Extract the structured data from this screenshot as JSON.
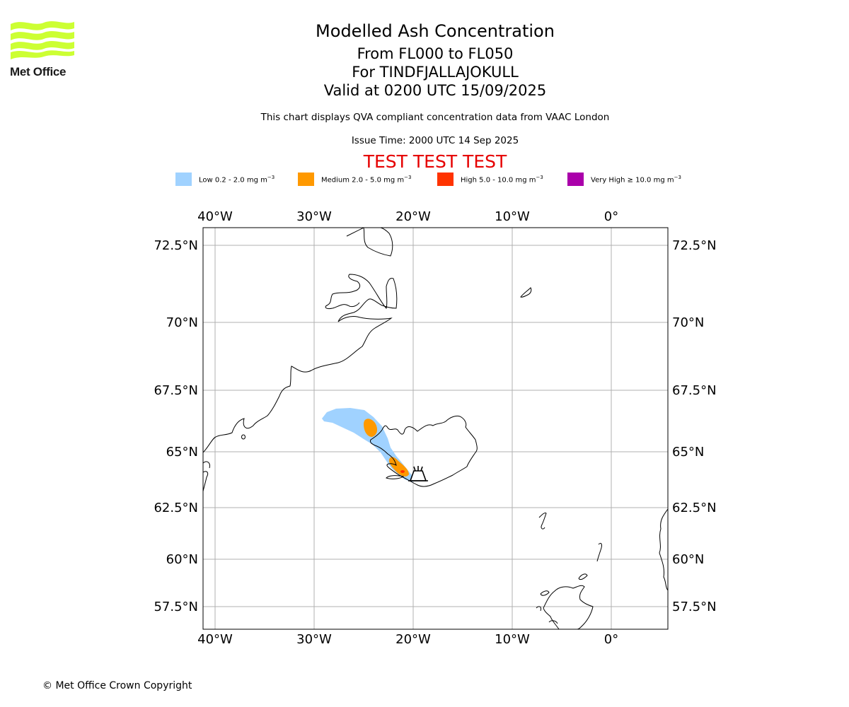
{
  "header": {
    "title": "Modelled Ash Concentration",
    "levels": "From FL000 to FL050",
    "volcano": "For TINDFJALLAJOKULL",
    "valid": "Valid at 0200 UTC 15/09/2025",
    "subtitle": "This chart displays QVA compliant concentration data from VAAC London",
    "issue": "Issue Time: 2000 UTC 14 Sep 2025",
    "test": "TEST TEST TEST"
  },
  "logo": {
    "text": "Met Office",
    "color": "#ccff33",
    "icon": "met-office-waves-logo"
  },
  "legend": [
    {
      "label": "Low 0.2 - 2.0 mg m",
      "unit_exp": "−3",
      "color": "#a0d2ff"
    },
    {
      "label": "Medium 2.0 - 5.0 mg m",
      "unit_exp": "−3",
      "color": "#ff9900"
    },
    {
      "label": "High 5.0 - 10.0 mg m",
      "unit_exp": "−3",
      "color": "#ff3300"
    },
    {
      "label": "Very High ≥ 10.0 mg m",
      "unit_exp": "−3",
      "color": "#aa00aa"
    }
  ],
  "map": {
    "lon_ticks": [
      "40°W",
      "30°W",
      "20°W",
      "10°W",
      "0°"
    ],
    "lat_ticks": [
      "72.5°N",
      "70°N",
      "67.5°N",
      "65°N",
      "62.5°N",
      "60°N",
      "57.5°N"
    ],
    "volcano_icon": "volcano-icon",
    "grid": true
  },
  "footer": {
    "copyright": "© Met Office Crown Copyright"
  }
}
